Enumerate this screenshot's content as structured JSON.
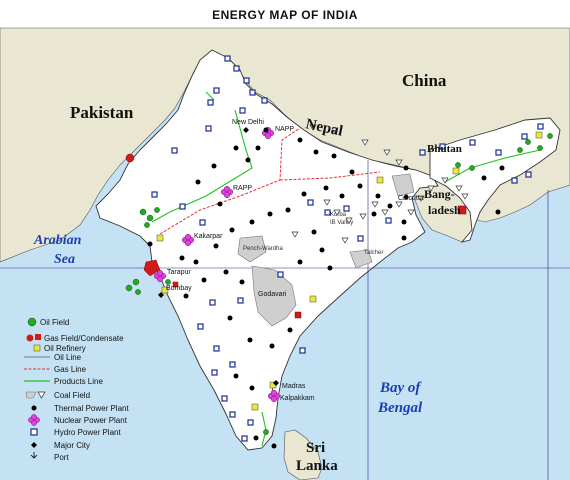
{
  "title": "ENERGY MAP OF INDIA",
  "colors": {
    "land": "#ffffff",
    "neighbour_land": "#e9e6d2",
    "sea": "#c4e2f4",
    "grid": "#2a2a80",
    "gas_line": "#e23030",
    "products_line": "#1fc41f",
    "oil_field": "#22aa22",
    "gas_field": "#d31a1a",
    "refinery": "#e8e83a",
    "coal_field": "#cfcfcf",
    "nuclear": "#e040e0",
    "hydro": "#1c2c8c",
    "thermal": "#000000"
  },
  "regions": {
    "pakistan": "Pakistan",
    "china": "China",
    "nepal": "Nepal",
    "bhutan": "Bhutan",
    "bangladesh_1": "Bang-",
    "bangladesh_2": "ladesh",
    "srilanka_1": "Sri",
    "srilanka_2": "Lanka",
    "arabian_1": "Arabian",
    "arabian_2": "Sea",
    "bay_1": "Bay of",
    "bay_2": "Bengal"
  },
  "cities": {
    "new_delhi": "New Delhi",
    "bombay": "Bombay",
    "calcutta": "Calcutta",
    "madras": "Madras",
    "tarapur": "Tarapur",
    "kakarpar": "Kakarpar",
    "kalpakkam": "Kalpakkam",
    "napp": "NAPP",
    "rapp": "RAPP",
    "godavari": "Godavari"
  },
  "coal_labels": {
    "ib": "IB Valley",
    "talcher": "Talcher",
    "raniganj": "Raniganj",
    "korba": "Korba",
    "wardha": "Pench-Wardha",
    "godavari_coal": "Godavari"
  },
  "legend": {
    "oil_field": "Oil Field",
    "gas_field": "Gas Field/Condensate",
    "oil_refinery": "Oil Refinery",
    "oil_line": "Oil Line",
    "gas_line": "Gas Line",
    "products_line": "Products Line",
    "coal_field": "Coal Field",
    "thermal": "Thermal Power Plant",
    "nuclear": "Nuclear Power Plant",
    "hydro": "Hydro Power Plant",
    "major_city": "Major City",
    "port": "Port"
  }
}
